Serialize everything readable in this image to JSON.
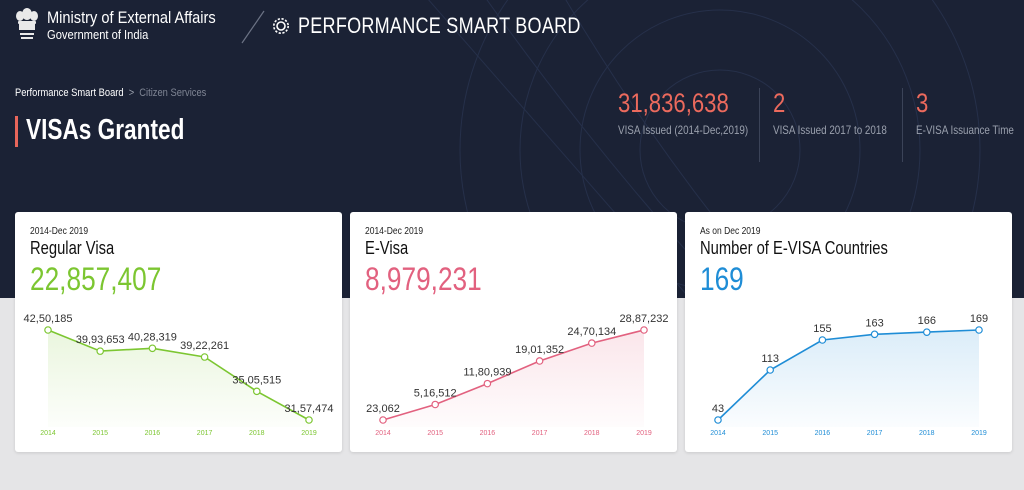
{
  "header": {
    "ministry_line1": "Ministry of External Affairs",
    "ministry_line2": "Government of India",
    "board_title": "PERFORMANCE SMART BOARD"
  },
  "breadcrumb": {
    "home": "Performance Smart Board",
    "separator": ">",
    "current": "Citizen Services"
  },
  "page_title": "VISAs Granted",
  "stats": [
    {
      "value": "31,836,638",
      "label": "VISA Issued (2014-Dec,2019)"
    },
    {
      "value": "2",
      "label": "VISA Issued 2017 to 2018"
    },
    {
      "value": "3",
      "label": "E-VISA Issuance Time"
    }
  ],
  "colors": {
    "hero_bg": "#1b2235",
    "accent_red": "#ec6a5d",
    "green": "#7cc631",
    "pink": "#e2617f",
    "blue": "#1f8dd6"
  },
  "cards": [
    {
      "subtitle": "2014-Dec 2019",
      "title": "Regular Visa",
      "value": "22,857,407",
      "color": "#7cc631"
    },
    {
      "subtitle": "2014-Dec 2019",
      "title": "E-Visa",
      "value": "8,979,231",
      "color": "#e2617f"
    },
    {
      "subtitle": "As on Dec 2019",
      "title": "Number of E-VISA Countries",
      "value": "169",
      "color": "#1f8dd6"
    }
  ],
  "chart_data": [
    {
      "type": "area",
      "title": "Regular Visa",
      "categories": [
        "2014",
        "2015",
        "2016",
        "2017",
        "2018",
        "2019"
      ],
      "values": [
        4250185,
        3993653,
        4028319,
        3922261,
        3505515,
        3157474
      ],
      "labels": [
        "42,50,185",
        "39,93,653",
        "40,28,319",
        "39,22,261",
        "35,05,515",
        "31,57,474"
      ],
      "color": "#7cc631"
    },
    {
      "type": "area",
      "title": "E-Visa",
      "categories": [
        "2014",
        "2015",
        "2016",
        "2017",
        "2018",
        "2019"
      ],
      "values": [
        23062,
        516512,
        1180939,
        1901352,
        2470134,
        2887232
      ],
      "labels": [
        "23,062",
        "5,16,512",
        "11,80,939",
        "19,01,352",
        "24,70,134",
        "28,87,232"
      ],
      "color": "#e2617f"
    },
    {
      "type": "area",
      "title": "Number of E-VISA Countries",
      "categories": [
        "2014",
        "2015",
        "2016",
        "2017",
        "2018",
        "2019"
      ],
      "values": [
        43,
        113,
        155,
        163,
        166,
        169
      ],
      "labels": [
        "43",
        "113",
        "155",
        "163",
        "166",
        "169"
      ],
      "color": "#1f8dd6"
    }
  ]
}
